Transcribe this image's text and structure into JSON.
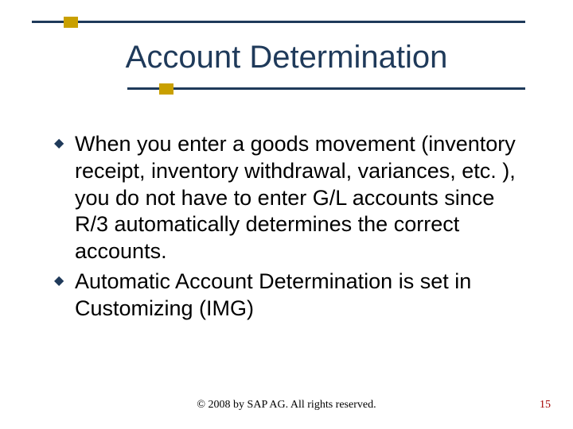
{
  "title": "Account Determination",
  "bullets": [
    {
      "text": "When you enter a goods movement (inventory receipt, inventory withdrawal, variances, etc. ), you do not have to enter G/L accounts since R/3 automatically determines the correct accounts."
    },
    {
      "text": "Automatic Account Determination is set in Customizing (IMG)"
    }
  ],
  "footer": "© 2008 by SAP AG. All rights reserved.",
  "page_number": "15",
  "colors": {
    "line": "#1f3a5a",
    "accent": "#c9a000",
    "title_text": "#1f3a5a",
    "body_text": "#000000",
    "page_num": "#a40000",
    "background": "#ffffff"
  },
  "typography": {
    "title_fontsize": 40,
    "body_fontsize": 27,
    "footer_fontsize": 14
  }
}
